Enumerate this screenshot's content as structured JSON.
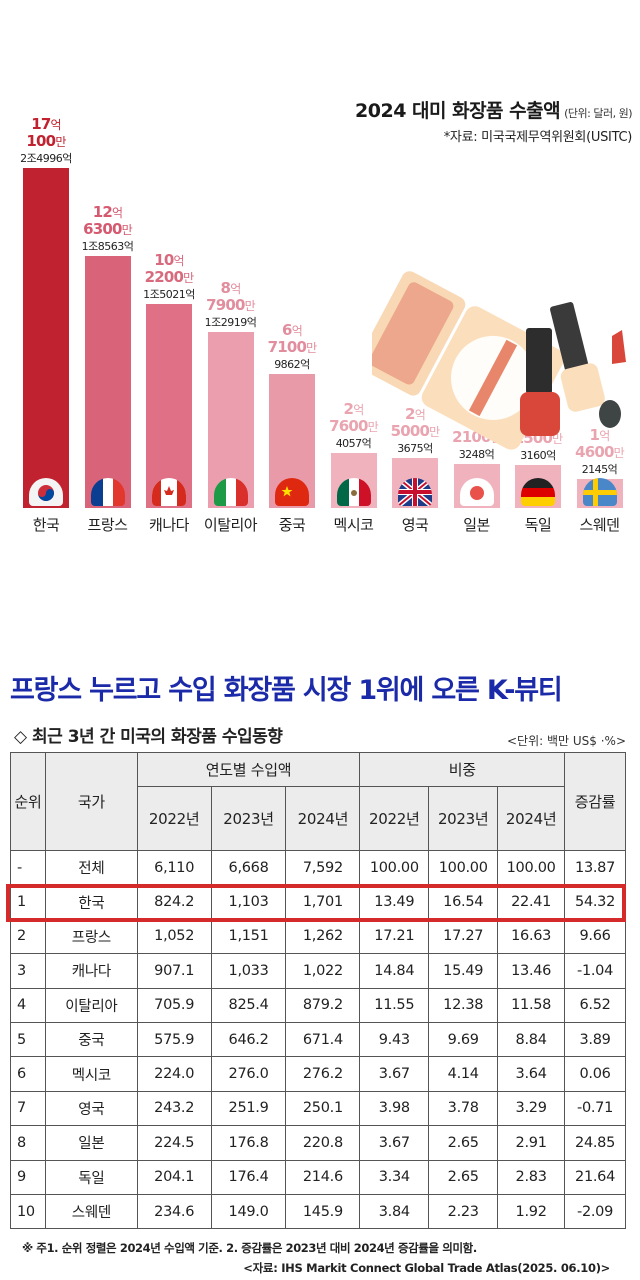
{
  "chart_data": {
    "type": "bar",
    "title": "2024 대미 화장품 수출액",
    "unit": "(단위: 달러, 원)",
    "source": "*자료: 미국국제무역위원회(USITC)",
    "categories": [
      "한국",
      "프랑스",
      "캐나다",
      "이탈리아",
      "중국",
      "멕시코",
      "영국",
      "일본",
      "독일",
      "스웨덴"
    ],
    "values_usd": [
      1701000000,
      1263000000,
      1022000000,
      879000000,
      671000000,
      276000000,
      250000000,
      221000000,
      215000000,
      146000000
    ],
    "labels": [
      {
        "usd_line1": "17",
        "usd_unit1": "억",
        "usd_line2": "100",
        "usd_unit2": "만",
        "krw": "2조4996억"
      },
      {
        "usd_line1": "12",
        "usd_unit1": "억",
        "usd_line2": "6300",
        "usd_unit2": "만",
        "krw": "1조8563억"
      },
      {
        "usd_line1": "10",
        "usd_unit1": "억",
        "usd_line2": "2200",
        "usd_unit2": "만",
        "krw": "1조5021억"
      },
      {
        "usd_line1": "8",
        "usd_unit1": "억",
        "usd_line2": "7900",
        "usd_unit2": "만",
        "krw": "1조2919억"
      },
      {
        "usd_line1": "6",
        "usd_unit1": "억",
        "usd_line2": "7100",
        "usd_unit2": "만",
        "krw": "9862억"
      },
      {
        "usd_line1": "2",
        "usd_unit1": "억",
        "usd_line2": "7600",
        "usd_unit2": "만",
        "krw": "4057억"
      },
      {
        "usd_line1": "2",
        "usd_unit1": "억",
        "usd_line2": "5000",
        "usd_unit2": "만",
        "krw": "3675억"
      },
      {
        "usd_line1": "2",
        "usd_unit1": "억",
        "usd_line2": "2100",
        "usd_unit2": "만",
        "krw": "3248억"
      },
      {
        "usd_line1": "2",
        "usd_unit1": "억",
        "usd_line2": "1500",
        "usd_unit2": "만",
        "krw": "3160억"
      },
      {
        "usd_line1": "1",
        "usd_unit1": "억",
        "usd_line2": "4600",
        "usd_unit2": "만",
        "krw": "2145억"
      }
    ],
    "flags": [
      "korea-flag",
      "france-flag",
      "canada-flag",
      "italy-flag",
      "china-flag",
      "mexico-flag",
      "uk-flag",
      "japan-flag",
      "germany-flag",
      "sweden-flag"
    ],
    "bar_colors": [
      "#c0232f",
      "#d9647a",
      "#df7085",
      "#eb9fae",
      "#e99aa9",
      "#f0b3bd",
      "#f0b3bd",
      "#f0b3bd",
      "#f0b3bd",
      "#f0b3bd"
    ],
    "label_colors": [
      "#c0232f",
      "#d5596f",
      "#d86a7e",
      "#e28d9d",
      "#e28d9d",
      "#e9a4b0",
      "#e9a4b0",
      "#e9a4b0",
      "#e9a4b0",
      "#e9a4b0"
    ],
    "ylim": [
      0,
      1701000000
    ],
    "grid": false
  },
  "headline": "프랑스 누르고 수입 화장품 시장 1위에 오른 K-뷰티",
  "table": {
    "title": "◇ 최근 3년 간 미국의 화장품 수입동향",
    "unit": "<단위: 백만 US$ ·%>",
    "headers": {
      "rank": "순위",
      "country": "국가",
      "import_group": "연도별 수입액",
      "share_group": "비중",
      "growth": "증감률",
      "years": [
        "2022년",
        "2023년",
        "2024년"
      ]
    },
    "rows": [
      {
        "rank": "-",
        "country": "전체",
        "imp2022": "6,110",
        "imp2023": "6,668",
        "imp2024": "7,592",
        "sh2022": "100.00",
        "sh2023": "100.00",
        "sh2024": "100.00",
        "growth": "13.87"
      },
      {
        "rank": "1",
        "country": "한국",
        "imp2022": "824.2",
        "imp2023": "1,103",
        "imp2024": "1,701",
        "sh2022": "13.49",
        "sh2023": "16.54",
        "sh2024": "22.41",
        "growth": "54.32"
      },
      {
        "rank": "2",
        "country": "프랑스",
        "imp2022": "1,052",
        "imp2023": "1,151",
        "imp2024": "1,262",
        "sh2022": "17.21",
        "sh2023": "17.27",
        "sh2024": "16.63",
        "growth": "9.66"
      },
      {
        "rank": "3",
        "country": "캐나다",
        "imp2022": "907.1",
        "imp2023": "1,033",
        "imp2024": "1,022",
        "sh2022": "14.84",
        "sh2023": "15.49",
        "sh2024": "13.46",
        "growth": "-1.04"
      },
      {
        "rank": "4",
        "country": "이탈리아",
        "imp2022": "705.9",
        "imp2023": "825.4",
        "imp2024": "879.2",
        "sh2022": "11.55",
        "sh2023": "12.38",
        "sh2024": "11.58",
        "growth": "6.52"
      },
      {
        "rank": "5",
        "country": "중국",
        "imp2022": "575.9",
        "imp2023": "646.2",
        "imp2024": "671.4",
        "sh2022": "9.43",
        "sh2023": "9.69",
        "sh2024": "8.84",
        "growth": "3.89"
      },
      {
        "rank": "6",
        "country": "멕시코",
        "imp2022": "224.0",
        "imp2023": "276.0",
        "imp2024": "276.2",
        "sh2022": "3.67",
        "sh2023": "4.14",
        "sh2024": "3.64",
        "growth": "0.06"
      },
      {
        "rank": "7",
        "country": "영국",
        "imp2022": "243.2",
        "imp2023": "251.9",
        "imp2024": "250.1",
        "sh2022": "3.98",
        "sh2023": "3.78",
        "sh2024": "3.29",
        "growth": "-0.71"
      },
      {
        "rank": "8",
        "country": "일본",
        "imp2022": "224.5",
        "imp2023": "176.8",
        "imp2024": "220.8",
        "sh2022": "3.67",
        "sh2023": "2.65",
        "sh2024": "2.91",
        "growth": "24.85"
      },
      {
        "rank": "9",
        "country": "독일",
        "imp2022": "204.1",
        "imp2023": "176.4",
        "imp2024": "214.6",
        "sh2022": "3.34",
        "sh2023": "2.65",
        "sh2024": "2.83",
        "growth": "21.64"
      },
      {
        "rank": "10",
        "country": "스웨덴",
        "imp2022": "234.6",
        "imp2023": "149.0",
        "imp2024": "145.9",
        "sh2022": "3.84",
        "sh2023": "2.23",
        "sh2024": "1.92",
        "growth": "-2.09"
      }
    ],
    "highlight_color": "#d42a2a"
  },
  "footnote": "※ 주1. 순위 정렬은 2024년 수입액 기준. 2. 증감률은 2023년 대비 2024년 증감률을 의미함.",
  "source_note": "<자료: IHS Markit Connect Global Trade Atlas(2025. 06.10)>",
  "colors": {
    "headline": "#1b2aa8",
    "korea_bar": "#c0232f"
  }
}
